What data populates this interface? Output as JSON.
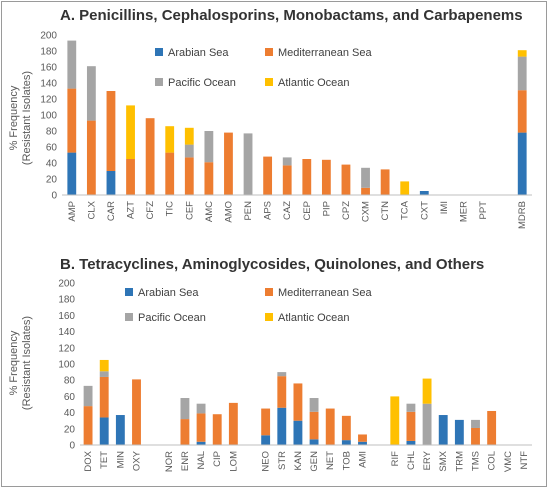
{
  "colors": {
    "Arabian Sea": "#2e75b6",
    "Mediterranean Sea": "#ed7d31",
    "Pacific Ocean": "#a5a5a5",
    "Atlantic Ocean": "#ffc000"
  },
  "chart_data": [
    {
      "type": "bar",
      "stacked": true,
      "title": "A. Penicillins, Cephalosporins, Monobactams, and Carbapenems",
      "ylabel_line1": "% Frequency",
      "ylabel_line2": "(Resistant Isolates)",
      "ylim": [
        0,
        200
      ],
      "yticks": [
        0,
        20,
        40,
        60,
        80,
        100,
        120,
        140,
        160,
        180,
        200
      ],
      "grid": false,
      "legend": "inside, upper area in two columns",
      "categories": [
        "AMP",
        "CLX",
        "CAR",
        "AZT",
        "CFZ",
        "TIC",
        "CEF",
        "AMC",
        "AMO",
        "PEN",
        "APS",
        "CAZ",
        "CEP",
        "PIP",
        "CPZ",
        "CXM",
        "CTN",
        "TCA",
        "CXT",
        "IMI",
        "MER",
        "PPT",
        "",
        "MDRB"
      ],
      "series": [
        {
          "name": "Arabian Sea",
          "values": [
            53,
            0,
            30,
            0,
            0,
            0,
            0,
            0,
            0,
            0,
            0,
            0,
            0,
            0,
            0,
            0,
            0,
            0,
            5,
            0,
            0,
            0,
            0,
            78
          ]
        },
        {
          "name": "Mediterranean Sea",
          "values": [
            80,
            93,
            100,
            45,
            96,
            53,
            47,
            41,
            78,
            0,
            48,
            37,
            45,
            44,
            38,
            9,
            32,
            0,
            0,
            0,
            0,
            0,
            0,
            53
          ]
        },
        {
          "name": "Pacific Ocean",
          "values": [
            60,
            68,
            0,
            0,
            0,
            0,
            16,
            39,
            0,
            77,
            0,
            10,
            0,
            0,
            0,
            25,
            0,
            0,
            0,
            0,
            0,
            0,
            0,
            42
          ]
        },
        {
          "name": "Atlantic Ocean",
          "values": [
            0,
            0,
            0,
            67,
            0,
            33,
            21,
            0,
            0,
            0,
            0,
            0,
            0,
            0,
            0,
            0,
            0,
            17,
            0,
            0,
            0,
            0,
            0,
            8
          ]
        }
      ]
    },
    {
      "type": "bar",
      "stacked": true,
      "title": "B. Tetracyclines, Aminoglycosides, Quinolones, and Others",
      "ylabel_line1": "% Frequency",
      "ylabel_line2": "(Resistant Isolates)",
      "ylim": [
        0,
        200
      ],
      "yticks": [
        0,
        20,
        40,
        60,
        80,
        100,
        120,
        140,
        160,
        180,
        200
      ],
      "grid": false,
      "legend": "inside, upper area in two columns",
      "categories": [
        "DOX",
        "TET",
        "MIN",
        "OXY",
        "",
        "NOR",
        "ENR",
        "NAL",
        "CIP",
        "LOM",
        "",
        "NEO",
        "STR",
        "KAN",
        "GEN",
        "NET",
        "TOB",
        "AMI",
        "",
        "RIF",
        "CHL",
        "ERY",
        "SMX",
        "TRM",
        "TMS",
        "COL",
        "VMC",
        "NTF"
      ],
      "series": [
        {
          "name": "Arabian Sea",
          "values": [
            0,
            34,
            37,
            0,
            0,
            0,
            0,
            4,
            0,
            0,
            0,
            12,
            46,
            30,
            7,
            0,
            6,
            4,
            0,
            0,
            5,
            0,
            37,
            31,
            0,
            0,
            0,
            0
          ]
        },
        {
          "name": "Mediterranean Sea",
          "values": [
            48,
            50,
            0,
            81,
            0,
            0,
            32,
            35,
            38,
            52,
            0,
            33,
            39,
            46,
            34,
            45,
            30,
            9,
            0,
            0,
            36,
            0,
            0,
            0,
            21,
            42,
            0,
            0
          ]
        },
        {
          "name": "Pacific Ocean",
          "values": [
            25,
            7,
            0,
            0,
            0,
            0,
            26,
            12,
            0,
            0,
            0,
            0,
            5,
            0,
            17,
            0,
            0,
            0,
            0,
            0,
            10,
            51,
            0,
            0,
            10,
            0,
            0,
            0
          ]
        },
        {
          "name": "Atlantic Ocean",
          "values": [
            0,
            14,
            0,
            0,
            0,
            0,
            0,
            0,
            0,
            0,
            0,
            0,
            0,
            0,
            0,
            0,
            0,
            0,
            0,
            60,
            0,
            31,
            0,
            0,
            0,
            0,
            0,
            0
          ]
        }
      ]
    }
  ]
}
